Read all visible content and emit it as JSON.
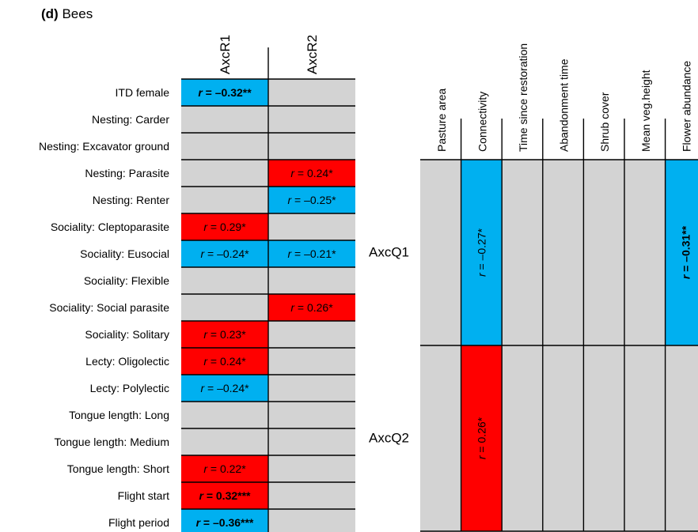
{
  "panel": {
    "letter": "(d)",
    "title": "Bees"
  },
  "chart_data": [
    {
      "type": "heatmap",
      "name": "trait-axes",
      "columns": [
        "AxcR1",
        "AxcR2"
      ],
      "rows": [
        "ITD female",
        "Nesting: Carder",
        "Nesting: Excavator ground",
        "Nesting: Parasite",
        "Nesting: Renter",
        "Sociality: Cleptoparasite",
        "Sociality: Eusocial",
        "Sociality: Flexible",
        "Sociality: Social parasite",
        "Sociality: Solitary",
        "Lecty: Oligolectic",
        "Lecty: Polylectic",
        "Tongue length: Long",
        "Tongue length: Medium",
        "Tongue length: Short",
        "Flight start",
        "Flight period"
      ],
      "cells": [
        [
          {
            "r": "–0.32",
            "sig": "**",
            "bold": true
          },
          null
        ],
        [
          null,
          null
        ],
        [
          null,
          null
        ],
        [
          null,
          {
            "r": "0.24",
            "sig": "*",
            "bold": false
          }
        ],
        [
          null,
          {
            "r": "–0.25",
            "sig": "*",
            "bold": false
          }
        ],
        [
          {
            "r": "0.29",
            "sig": "*",
            "bold": false
          },
          null
        ],
        [
          {
            "r": "–0.24",
            "sig": "*",
            "bold": false
          },
          {
            "r": "–0.21",
            "sig": "*",
            "bold": false
          }
        ],
        [
          null,
          null
        ],
        [
          null,
          {
            "r": "0.26",
            "sig": "*",
            "bold": false
          }
        ],
        [
          {
            "r": "0.23",
            "sig": "*",
            "bold": false
          },
          null
        ],
        [
          {
            "r": "0.24",
            "sig": "*",
            "bold": false
          },
          null
        ],
        [
          {
            "r": "–0.24",
            "sig": "*",
            "bold": false
          },
          null
        ],
        [
          null,
          null
        ],
        [
          null,
          null
        ],
        [
          {
            "r": "0.22",
            "sig": "*",
            "bold": false
          },
          null
        ],
        [
          {
            "r": "0.32",
            "sig": "***",
            "bold": true
          },
          null
        ],
        [
          {
            "r": "–0.36",
            "sig": "***",
            "bold": true
          },
          null
        ]
      ]
    },
    {
      "type": "heatmap",
      "name": "environment-axes",
      "columns": [
        "Pasture area",
        "Connectivity",
        "Time since restoration",
        "Abandonment time",
        "Shrub cover",
        "Mean veg.height",
        "Flower abundance"
      ],
      "rows": [
        "AxcQ1",
        "AxcQ2"
      ],
      "cells": [
        [
          null,
          {
            "r": "–0.27",
            "sig": "*",
            "bold": false
          },
          null,
          null,
          null,
          null,
          {
            "r": "–0.31",
            "sig": "**",
            "bold": true
          }
        ],
        [
          null,
          {
            "r": "0.26",
            "sig": "*",
            "bold": false
          },
          null,
          null,
          null,
          null,
          null
        ]
      ]
    }
  ],
  "r_symbol": "r",
  "colors": {
    "positive": "#ff0000",
    "negative": "#00b0f0",
    "neutral": "#d3d3d3",
    "grid": "#000000"
  }
}
